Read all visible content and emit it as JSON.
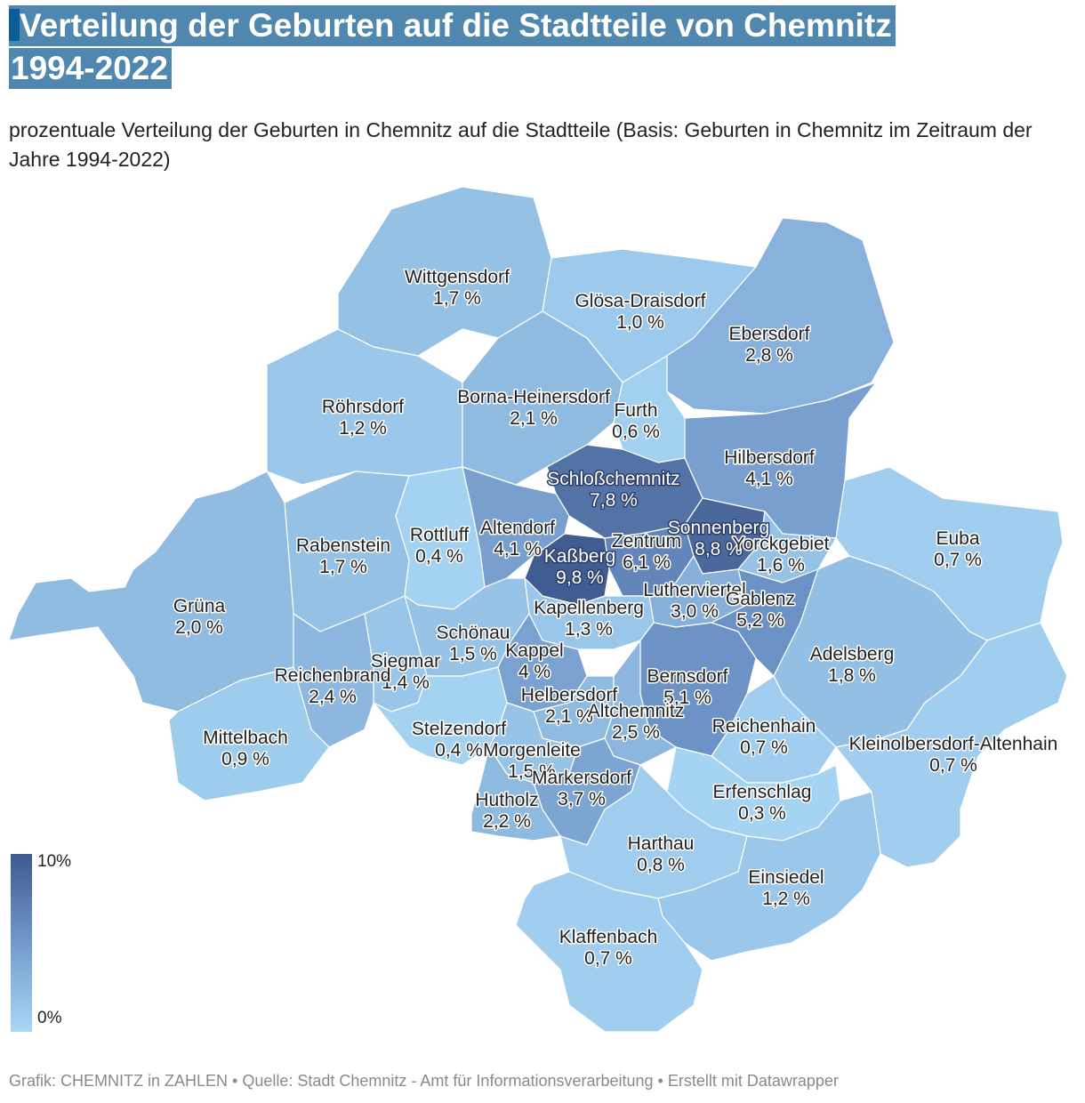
{
  "title": {
    "line1": "Verteilung der Geburten auf die Stadtteile von Chemnitz",
    "line2": "1994-2022"
  },
  "subtitle": "prozentuale Verteilung der Geburten in Chemnitz auf die Stadtteile (Basis: Geburten in Chemnitz im Zeitraum der Jahre 1994-2022)",
  "legend": {
    "max_label": "10%",
    "min_label": "0%"
  },
  "footer": "Grafik: CHEMNITZ in ZAHLEN • Quelle: Stadt Chemnitz - Amt für Informationsverarbeitung • Erstellt mit Datawrapper",
  "colors": {
    "low": "#a9d8f5",
    "mid": "#6e93c6",
    "high": "#3e5a8f",
    "title_bg": "#4f87ae"
  },
  "chart_data": {
    "type": "choropleth",
    "unit": "%",
    "scale": [
      0,
      10
    ],
    "districts": [
      {
        "name": "Wittgensdorf",
        "value": 1.7,
        "value_label": "1,7 %"
      },
      {
        "name": "Glösa-Draisdorf",
        "value": 1.0,
        "value_label": "1,0 %"
      },
      {
        "name": "Ebersdorf",
        "value": 2.8,
        "value_label": "2,8 %"
      },
      {
        "name": "Röhrsdorf",
        "value": 1.2,
        "value_label": "1,2 %"
      },
      {
        "name": "Borna-Heinersdorf",
        "value": 2.1,
        "value_label": "2,1 %"
      },
      {
        "name": "Furth",
        "value": 0.6,
        "value_label": "0,6 %"
      },
      {
        "name": "Hilbersdorf",
        "value": 4.1,
        "value_label": "4,1 %"
      },
      {
        "name": "Schloßchemnitz",
        "value": 7.8,
        "value_label": "7,8 %"
      },
      {
        "name": "Rabenstein",
        "value": 1.7,
        "value_label": "1,7 %"
      },
      {
        "name": "Rottluff",
        "value": 0.4,
        "value_label": "0,4 %"
      },
      {
        "name": "Altendorf",
        "value": 4.1,
        "value_label": "4,1 %"
      },
      {
        "name": "Kaßberg",
        "value": 9.8,
        "value_label": "9,8 %"
      },
      {
        "name": "Zentrum",
        "value": 6.1,
        "value_label": "6,1 %"
      },
      {
        "name": "Sonnenberg",
        "value": 8.8,
        "value_label": "8,8 %"
      },
      {
        "name": "Yorckgebiet",
        "value": 1.6,
        "value_label": "1,6 %"
      },
      {
        "name": "Euba",
        "value": 0.7,
        "value_label": "0,7 %"
      },
      {
        "name": "Grüna",
        "value": 2.0,
        "value_label": "2,0 %"
      },
      {
        "name": "Lutherviertel",
        "value": 3.0,
        "value_label": "3,0 %"
      },
      {
        "name": "Gablenz",
        "value": 5.2,
        "value_label": "5,2 %"
      },
      {
        "name": "Kapellenberg",
        "value": 1.3,
        "value_label": "1,3 %"
      },
      {
        "name": "Schönau",
        "value": 1.5,
        "value_label": "1,5 %"
      },
      {
        "name": "Kappel",
        "value": 4.0,
        "value_label": "4 %"
      },
      {
        "name": "Siegmar",
        "value": 1.4,
        "value_label": "1,4 %"
      },
      {
        "name": "Reichenbrand",
        "value": 2.4,
        "value_label": "2,4 %"
      },
      {
        "name": "Adelsberg",
        "value": 1.8,
        "value_label": "1,8 %"
      },
      {
        "name": "Bernsdorf",
        "value": 5.1,
        "value_label": "5,1 %"
      },
      {
        "name": "Helbersdorf",
        "value": 2.1,
        "value_label": "2,1 %"
      },
      {
        "name": "Altchemnitz",
        "value": 2.5,
        "value_label": "2,5 %"
      },
      {
        "name": "Mittelbach",
        "value": 0.9,
        "value_label": "0,9 %"
      },
      {
        "name": "Stelzendorf",
        "value": 0.4,
        "value_label": "0,4 %"
      },
      {
        "name": "Reichenhain",
        "value": 0.7,
        "value_label": "0,7 %"
      },
      {
        "name": "Kleinolbersdorf-Altenhain",
        "value": 0.7,
        "value_label": "0,7 %"
      },
      {
        "name": "Morgenleite",
        "value": 1.5,
        "value_label": "1,5 %"
      },
      {
        "name": "Markersdorf",
        "value": 3.7,
        "value_label": "3,7 %"
      },
      {
        "name": "Erfenschlag",
        "value": 0.3,
        "value_label": "0,3 %"
      },
      {
        "name": "Hutholz",
        "value": 2.2,
        "value_label": "2,2 %"
      },
      {
        "name": "Harthau",
        "value": 0.8,
        "value_label": "0,8 %"
      },
      {
        "name": "Einsiedel",
        "value": 1.2,
        "value_label": "1,2 %"
      },
      {
        "name": "Klaffenbach",
        "value": 0.7,
        "value_label": "0,7 %"
      }
    ]
  }
}
